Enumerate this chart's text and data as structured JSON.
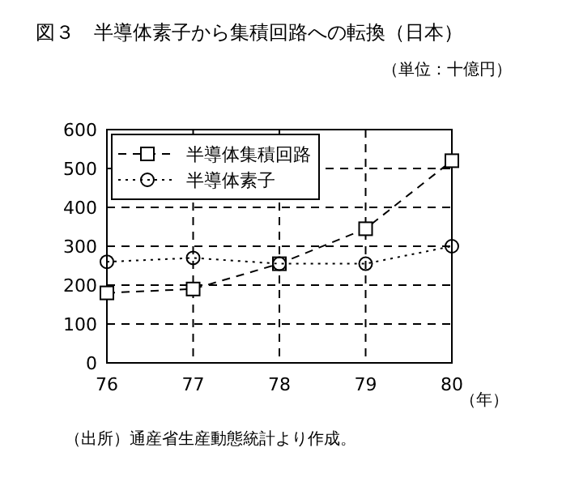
{
  "chart_data": {
    "type": "line",
    "title": "図３　半導体素子から集積回路への転換（日本）",
    "subtitle": "（単位：十億円）",
    "xlabel": "（年）",
    "annotations": [
      "（出所）通産省生産動態統計より作成。"
    ],
    "categories": [
      "76",
      "77",
      "78",
      "79",
      "80"
    ],
    "series": [
      {
        "name": "半導体集積回路",
        "color": "#000000",
        "values": [
          180,
          190,
          255,
          345,
          520
        ],
        "marker": "square",
        "line_style": "dashed"
      },
      {
        "name": "半導体素子",
        "color": "#000000",
        "values": [
          260,
          270,
          255,
          255,
          300
        ],
        "marker": "circle",
        "line_style": "dotted"
      }
    ],
    "ylim": [
      0,
      600
    ],
    "yticks": [
      0,
      100,
      200,
      300,
      400,
      500,
      600
    ],
    "grid": true,
    "legend": "top left"
  }
}
